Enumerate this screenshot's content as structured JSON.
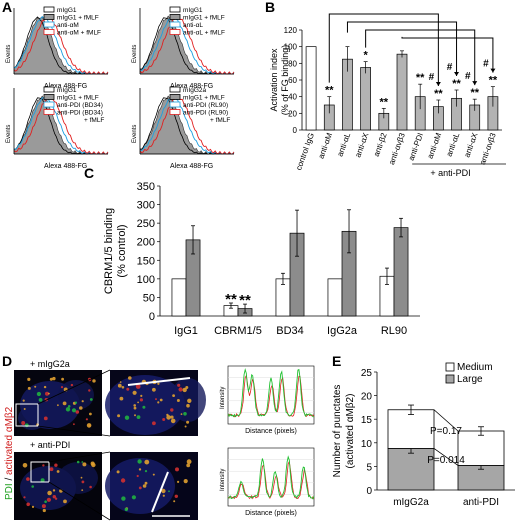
{
  "panels": {
    "A": {
      "letter": "A",
      "y_label": "Events",
      "x_label": "Alexa 488-FG",
      "histograms": [
        {
          "legend": [
            "mIgG1",
            "mIgG1 + fMLF",
            "anti-αM",
            "anti-αM + fMLF"
          ]
        },
        {
          "legend": [
            "mIgG1",
            "mIgG1 + fMLF",
            "anti-αL",
            "anti-αL + fMLF"
          ]
        },
        {
          "legend": [
            "mIgG1",
            "mIgG1 + fMLF",
            "anti-PDI (BD34)",
            "anti-PDI (BD34)",
            "+ fMLF"
          ]
        },
        {
          "legend": [
            "mIgG2a",
            "mIgG1 + fMLF",
            "anti-PDI (RL90)",
            "anti-PDI (RL90)",
            "+ fMLF"
          ]
        }
      ]
    },
    "B": {
      "letter": "B"
    },
    "C": {
      "letter": "C"
    },
    "D": {
      "letter": "D",
      "top_label": "+ mIgG2a",
      "bottom_label": "+ anti-PDI",
      "side_label_pdi": "PDI",
      "side_label_sep": " / ",
      "side_label_act": "activated αMβ2",
      "line_y_label": "Intensity",
      "line_x_label": "Distance (pixels)"
    },
    "E": {
      "letter": "E"
    }
  },
  "chart_data": [
    {
      "panel": "B",
      "type": "bar",
      "ylabel": "Activation index\n(% of FG binding)",
      "ylim": [
        0,
        120
      ],
      "yticks": [
        0,
        20,
        40,
        60,
        80,
        100,
        120
      ],
      "categories": [
        "control IgG",
        "anti-αM",
        "anti-αL",
        "anti-αX",
        "anti-β2",
        "anti-αvβ3",
        "anti-PDI",
        "anti-αM",
        "anti-αL",
        "anti-αX",
        "anti-αvβ3"
      ],
      "values": [
        100,
        30,
        85,
        75,
        20,
        91,
        40,
        28,
        38,
        30,
        40
      ],
      "errors": [
        0,
        10,
        15,
        7,
        6,
        4,
        15,
        8,
        10,
        7,
        12
      ],
      "significance": [
        "",
        "**",
        "",
        "*",
        "**",
        "",
        "**",
        "**",
        "**",
        "**",
        "**"
      ],
      "group_label": "+ anti-PDI",
      "comparison_mark": "#"
    },
    {
      "panel": "C",
      "type": "bar",
      "ylabel": "CBRM1/5 binding\n(% control)",
      "ylim": [
        0,
        350
      ],
      "yticks": [
        0,
        50,
        100,
        150,
        200,
        250,
        300,
        350
      ],
      "categories": [
        "IgG1",
        "CBRM1/5",
        "BD34",
        "IgG2a",
        "RL90"
      ],
      "series": [
        {
          "values": [
            100,
            28,
            100,
            100,
            107
          ],
          "errors": [
            0,
            7,
            15,
            0,
            22
          ]
        },
        {
          "values": [
            205,
            20,
            223,
            228,
            238
          ],
          "errors": [
            38,
            12,
            62,
            58,
            25
          ]
        }
      ],
      "significance": [
        "",
        "**",
        "",
        "",
        ""
      ]
    },
    {
      "panel": "E",
      "type": "bar",
      "stacked": true,
      "ylabel": "Number of punctates\n(activated αMβ2)",
      "ylim": [
        0,
        25
      ],
      "yticks": [
        0,
        5,
        10,
        15,
        20,
        25
      ],
      "categories": [
        "mIgG2a",
        "anti-PDI"
      ],
      "series": [
        {
          "name": "Large",
          "values": [
            8.8,
            5.2
          ],
          "errors": [
            1.0,
            0.8
          ]
        },
        {
          "name": "Medium",
          "values": [
            8.2,
            7.3
          ],
          "errors": [
            1.0,
            0.9
          ]
        }
      ],
      "annotations": [
        "P=0.17",
        "P=0.014"
      ],
      "legend": [
        "Medium",
        "Large"
      ]
    }
  ]
}
